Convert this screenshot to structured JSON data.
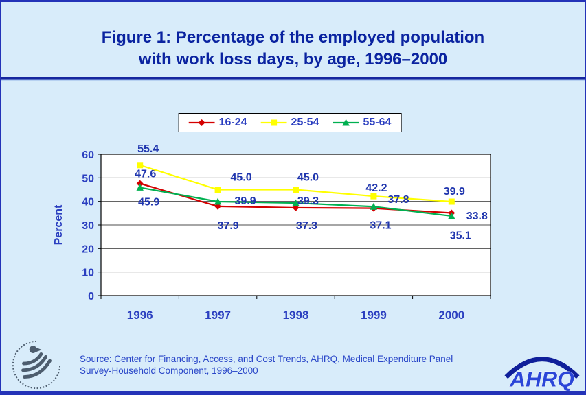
{
  "colors": {
    "background": "#d8ecfa",
    "border": "#2433b8",
    "title": "#0a23a0",
    "axis_text": "#2b3fc0",
    "data_label": "#1f35ae",
    "source_text": "#2946c8",
    "plot_bg": "#ffffff",
    "gridline": "#4d4d4d",
    "plot_border": "#000000",
    "legend_text": "#2b3fc0",
    "ahrq_letters": "#2a46d8",
    "ahrq_arc": "#0f1f9a",
    "hhs_gray": "#4d5d6e"
  },
  "title": {
    "line1": "Figure 1: Percentage of the employed population",
    "line2": "with work loss days, by age, 1996–2000"
  },
  "chart_data": {
    "type": "line",
    "categories": [
      "1996",
      "1997",
      "1998",
      "1999",
      "2000"
    ],
    "series": [
      {
        "name": "16-24",
        "color": "#d40000",
        "marker": "diamond",
        "values": [
          47.6,
          37.9,
          37.3,
          37.1,
          35.1
        ],
        "label_offsets": [
          [
            8,
            -9
          ],
          [
            15,
            33
          ],
          [
            16,
            31
          ],
          [
            10,
            30
          ],
          [
            13,
            38
          ]
        ]
      },
      {
        "name": "25-54",
        "color": "#ffff00",
        "marker": "square",
        "values": [
          55.4,
          45.0,
          45.0,
          42.2,
          39.9
        ],
        "label_offsets": [
          [
            12,
            -19
          ],
          [
            34,
            -13
          ],
          [
            18,
            -13
          ],
          [
            4,
            -7
          ],
          [
            4,
            -10
          ]
        ]
      },
      {
        "name": "55-64",
        "color": "#00b050",
        "marker": "triangle",
        "values": [
          45.9,
          39.9,
          39.3,
          37.8,
          33.8
        ],
        "label_offsets": [
          [
            13,
            26
          ],
          [
            40,
            4
          ],
          [
            18,
            2
          ],
          [
            36,
            -5
          ],
          [
            37,
            5
          ]
        ]
      }
    ],
    "xlabel": "",
    "ylabel": "Percent",
    "ylim": [
      0,
      60
    ],
    "ytick_step": 10,
    "grid": true,
    "legend_position": "top-center"
  },
  "source": {
    "line1": "Source: Center for Financing, Access, and Cost Trends, AHRQ, Medical Expenditure Panel",
    "line2": "Survey-Household Component, 1996–2000"
  },
  "footer": {
    "ahrq_logo_text": "AHRQ"
  }
}
